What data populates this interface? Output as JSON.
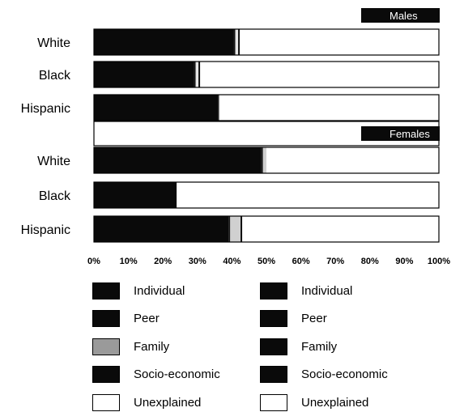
{
  "chart_data": {
    "type": "bar",
    "orientation": "horizontal",
    "stacked": true,
    "xlim": [
      0,
      100
    ],
    "x_ticks": [
      "0%",
      "10%",
      "20%",
      "30%",
      "40%",
      "50%",
      "60%",
      "70%",
      "80%",
      "90%",
      "100%"
    ],
    "panels": [
      {
        "header": "Males",
        "categories": [
          "White",
          "Black",
          "Hispanic"
        ],
        "series": [
          {
            "name": "Individual",
            "values": [
              40.5,
              29,
              36
            ],
            "color": "#0a0a0a"
          },
          {
            "name": "Peer",
            "values": [
              0.5,
              0.5,
              0.3
            ],
            "color": "#161616"
          },
          {
            "name": "Family",
            "values": [
              0.8,
              0.8,
              0
            ],
            "color": "#e6e6e6"
          },
          {
            "name": "Socio-economic",
            "values": [
              0.5,
              0.5,
              0
            ],
            "color": "#0d0d0d"
          },
          {
            "name": "Unexplained",
            "values": [
              57.7,
              69.2,
              63.7
            ],
            "color": "#ffffff"
          }
        ]
      },
      {
        "header": "Females",
        "categories": [
          "White",
          "Black",
          "Hispanic"
        ],
        "series": [
          {
            "name": "Individual",
            "values": [
              48.5,
              24,
              39
            ],
            "color": "#0a0a0a"
          },
          {
            "name": "Peer",
            "values": [
              0.5,
              0,
              0.5
            ],
            "color": "#161616"
          },
          {
            "name": "Family",
            "values": [
              1,
              0,
              3
            ],
            "color": "#d0d0d0"
          },
          {
            "name": "Socio-economic",
            "values": [
              0,
              0,
              0.5
            ],
            "color": "#0d0d0d"
          },
          {
            "name": "Unexplained",
            "values": [
              50,
              76,
              57
            ],
            "color": "#ffffff"
          }
        ]
      }
    ],
    "legend": [
      {
        "panel": "Males",
        "items": [
          {
            "label": "Individual",
            "color": "#0a0a0a"
          },
          {
            "label": "Peer",
            "color": "#0a0a0a"
          },
          {
            "label": "Family",
            "color": "#9a9a9a"
          },
          {
            "label": "Socio-economic",
            "color": "#0a0a0a"
          },
          {
            "label": "Unexplained",
            "color": "#ffffff"
          }
        ]
      },
      {
        "panel": "Females",
        "items": [
          {
            "label": "Individual",
            "color": "#0a0a0a"
          },
          {
            "label": "Peer",
            "color": "#0a0a0a"
          },
          {
            "label": "Family",
            "color": "#0a0a0a"
          },
          {
            "label": "Socio-economic",
            "color": "#0a0a0a"
          },
          {
            "label": "Unexplained",
            "color": "#ffffff"
          }
        ]
      }
    ],
    "legend_placement": "bottom"
  }
}
